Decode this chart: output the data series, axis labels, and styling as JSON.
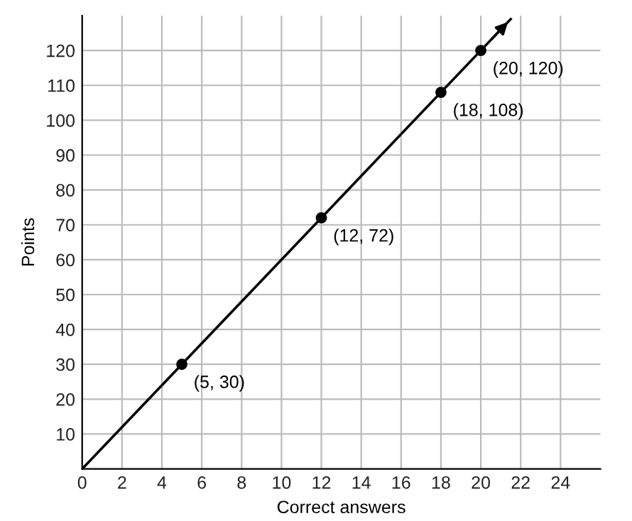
{
  "chart_data": {
    "type": "line",
    "xlabel": "Correct answers",
    "ylabel": "Points",
    "xlim": [
      0,
      26
    ],
    "ylim": [
      0,
      130
    ],
    "xticks": [
      0,
      2,
      4,
      6,
      8,
      10,
      12,
      14,
      16,
      18,
      20,
      22,
      24
    ],
    "yticks": [
      10,
      20,
      30,
      40,
      50,
      60,
      70,
      80,
      90,
      100,
      110,
      120
    ],
    "grid": true,
    "series": [
      {
        "color": "#000000",
        "x": [
          0,
          21.5
        ],
        "values": [
          0,
          129
        ]
      },
      {
        "type": "scatter",
        "color": "#000000",
        "x": [
          5,
          12,
          18,
          20
        ],
        "values": [
          30,
          72,
          108,
          120
        ]
      }
    ],
    "annotations": [
      {
        "text": "(5, 30)",
        "x": 5,
        "y": 30
      },
      {
        "text": "(12, 72)",
        "x": 12,
        "y": 72
      },
      {
        "text": "(18, 108)",
        "x": 18,
        "y": 108
      },
      {
        "text": "(20, 120)",
        "x": 20,
        "y": 120
      }
    ]
  }
}
